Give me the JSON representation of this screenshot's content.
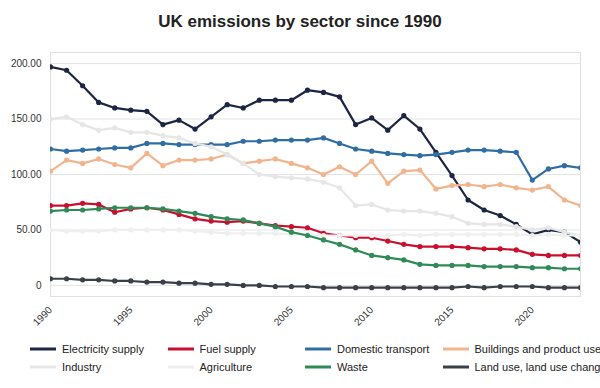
{
  "chart_data": {
    "type": "line",
    "title": "UK emissions by sector since 1990",
    "x": [
      1990,
      1991,
      1992,
      1993,
      1994,
      1995,
      1996,
      1997,
      1998,
      1999,
      2000,
      2001,
      2002,
      2003,
      2004,
      2005,
      2006,
      2007,
      2008,
      2009,
      2010,
      2011,
      2012,
      2013,
      2014,
      2015,
      2016,
      2017,
      2018,
      2019,
      2020,
      2021,
      2022,
      2023
    ],
    "xlim": [
      1990,
      2023
    ],
    "xticks": [
      1990,
      1995,
      2000,
      2005,
      2010,
      2015,
      2020
    ],
    "ylim": [
      -10,
      210
    ],
    "yticks": [
      0,
      {
        "value": 50,
        "label": "50.00"
      },
      {
        "value": 100,
        "label": "100.00"
      },
      {
        "value": 150,
        "label": "150.00"
      },
      {
        "value": 200,
        "label": "200.00"
      }
    ],
    "grid": true,
    "legend": "bottom",
    "marker": "circle",
    "series": [
      {
        "name": "Electricity supply",
        "color": "#1c2541",
        "values": [
          197,
          194,
          180,
          165,
          160,
          158,
          157,
          145,
          149,
          141,
          152,
          163,
          160,
          167,
          167,
          167,
          176,
          174,
          170,
          145,
          151,
          140,
          153,
          141,
          120,
          99,
          77,
          68,
          63,
          55,
          46,
          50,
          48,
          39
        ]
      },
      {
        "name": "Fuel supply",
        "color": "#c8102e",
        "values": [
          72,
          72,
          74,
          73,
          66,
          69,
          70,
          68,
          64,
          60,
          58,
          57,
          58,
          56,
          54,
          53,
          52,
          47,
          45,
          43,
          43,
          40,
          37,
          35,
          35,
          35,
          34,
          33,
          33,
          32,
          28,
          27,
          27,
          27
        ]
      },
      {
        "name": "Domestic transport",
        "color": "#2f6ea5",
        "values": [
          123,
          121,
          122,
          123,
          124,
          124,
          128,
          128,
          127,
          127,
          127,
          127,
          130,
          130,
          131,
          131,
          131,
          133,
          128,
          123,
          121,
          119,
          118,
          117,
          118,
          120,
          122,
          122,
          121,
          120,
          95,
          105,
          108,
          106
        ]
      },
      {
        "name": "Buildings and product uses",
        "color": "#f2b48c",
        "values": [
          103,
          113,
          110,
          114,
          109,
          106,
          119,
          108,
          113,
          113,
          114,
          118,
          110,
          112,
          114,
          110,
          106,
          100,
          107,
          100,
          112,
          92,
          103,
          104,
          87,
          90,
          91,
          89,
          91,
          88,
          86,
          89,
          77,
          72
        ]
      },
      {
        "name": "Industry",
        "color": "#e6e6e6",
        "values": [
          150,
          152,
          145,
          140,
          142,
          138,
          138,
          135,
          133,
          128,
          125,
          118,
          110,
          100,
          98,
          97,
          96,
          93,
          88,
          72,
          73,
          68,
          67,
          67,
          65,
          62,
          56,
          55,
          55,
          53,
          50,
          52,
          48,
          45
        ]
      },
      {
        "name": "Agriculture",
        "color": "#efefef",
        "values": [
          50,
          49,
          49,
          49,
          50,
          50,
          50,
          50,
          50,
          49,
          48,
          47,
          47,
          47,
          47,
          46,
          46,
          45,
          45,
          45,
          45,
          45,
          46,
          45,
          46,
          46,
          46,
          46,
          46,
          46,
          45,
          46,
          45,
          45
        ]
      },
      {
        "name": "Waste",
        "color": "#2e8b57",
        "values": [
          67,
          68,
          68,
          69,
          70,
          70,
          70,
          69,
          67,
          65,
          62,
          60,
          59,
          56,
          53,
          48,
          45,
          41,
          37,
          32,
          27,
          25,
          23,
          19,
          18,
          18,
          18,
          17,
          17,
          17,
          16,
          16,
          15,
          15
        ]
      },
      {
        "name": "Land use, land use change and forestry",
        "color": "#3a3f4a",
        "values": [
          6,
          6,
          5,
          5,
          4,
          4,
          3,
          3,
          2,
          2,
          1,
          1,
          0,
          0,
          -1,
          -1,
          -1,
          -2,
          -2,
          -2,
          -2,
          -2,
          -2,
          -2,
          -2,
          -2,
          -1,
          -2,
          -1,
          -1,
          -1,
          -2,
          -2,
          -2
        ]
      }
    ]
  }
}
